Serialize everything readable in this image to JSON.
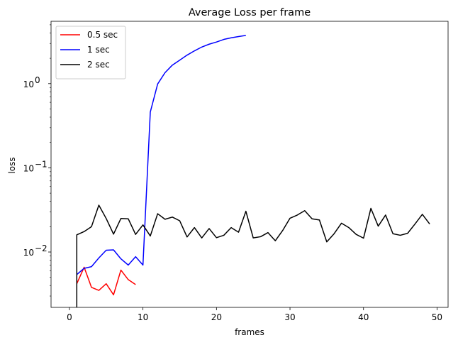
{
  "chart_data": {
    "type": "line",
    "title": "Average Loss per frame",
    "xlabel": "frames",
    "ylabel": "loss",
    "xlim": [
      -2.5,
      51.5
    ],
    "ylim": [
      0.0022,
      5.5
    ],
    "yscale": "log",
    "x_ticks": [
      0,
      10,
      20,
      30,
      40,
      50
    ],
    "y_ticks": [
      {
        "value": 0.01,
        "base": "10",
        "exp": "−2"
      },
      {
        "value": 0.1,
        "base": "10",
        "exp": "−1"
      },
      {
        "value": 1,
        "base": "10",
        "exp": "0"
      }
    ],
    "grid": false,
    "legend_position": "upper-left",
    "series": [
      {
        "name": "0.5 sec",
        "color": "#ff0000",
        "x": [
          1,
          2,
          3,
          4,
          5,
          6,
          7,
          8,
          9
        ],
        "y": [
          0.0042,
          0.0066,
          0.0038,
          0.0035,
          0.0042,
          0.0031,
          0.0061,
          0.0047,
          0.0041
        ]
      },
      {
        "name": "1 sec",
        "color": "#0000ff",
        "x": [
          1,
          2,
          3,
          4,
          5,
          6,
          7,
          8,
          9,
          10,
          11,
          12,
          13,
          14,
          15,
          16,
          17,
          18,
          19,
          20,
          21,
          22,
          23,
          24
        ],
        "y": [
          0.0054,
          0.0064,
          0.0067,
          0.0085,
          0.0105,
          0.0106,
          0.0083,
          0.007,
          0.0088,
          0.007,
          0.46,
          0.99,
          1.35,
          1.66,
          1.9,
          2.18,
          2.45,
          2.72,
          2.94,
          3.12,
          3.35,
          3.5,
          3.62,
          3.74
        ]
      },
      {
        "name": "2 sec",
        "color": "#000000",
        "x": [
          1,
          1,
          2,
          3,
          4,
          5,
          6,
          7,
          8,
          9,
          10,
          11,
          12,
          13,
          14,
          15,
          16,
          17,
          18,
          19,
          20,
          21,
          22,
          23,
          24,
          25,
          26,
          27,
          28,
          29,
          30,
          31,
          32,
          33,
          34,
          35,
          36,
          37,
          38,
          39,
          40,
          41,
          42,
          43,
          44,
          45,
          46,
          47,
          48,
          49
        ],
        "y": [
          0.001,
          0.016,
          0.0175,
          0.02,
          0.036,
          0.025,
          0.0163,
          0.025,
          0.0248,
          0.0162,
          0.021,
          0.0155,
          0.0285,
          0.0245,
          0.026,
          0.0235,
          0.0151,
          0.0195,
          0.0147,
          0.019,
          0.0148,
          0.0158,
          0.0195,
          0.0172,
          0.0305,
          0.0147,
          0.0152,
          0.017,
          0.0136,
          0.018,
          0.0252,
          0.0275,
          0.031,
          0.0248,
          0.024,
          0.0132,
          0.0165,
          0.022,
          0.0195,
          0.0162,
          0.0146,
          0.033,
          0.0203,
          0.0275,
          0.0165,
          0.0158,
          0.0167,
          0.0215,
          0.028,
          0.0215
        ]
      }
    ]
  }
}
